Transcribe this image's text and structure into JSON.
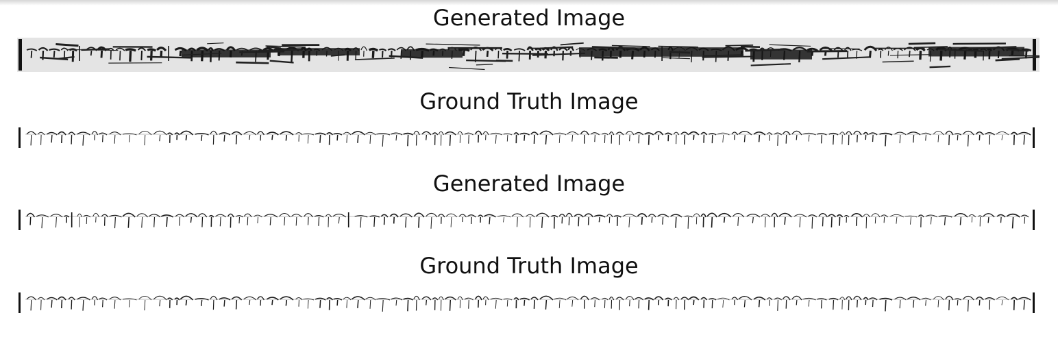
{
  "panels": [
    {
      "title": "Generated Image",
      "image": "tibetan-manuscript-line-generated-noisy",
      "style": "noisy"
    },
    {
      "title": "Ground Truth Image",
      "image": "tibetan-manuscript-line-ground-truth",
      "style": "clean"
    },
    {
      "title": "Generated Image",
      "image": "tibetan-manuscript-line-generated-clean",
      "style": "clean"
    },
    {
      "title": "Ground Truth Image",
      "image": "tibetan-manuscript-line-ground-truth",
      "style": "clean"
    }
  ]
}
